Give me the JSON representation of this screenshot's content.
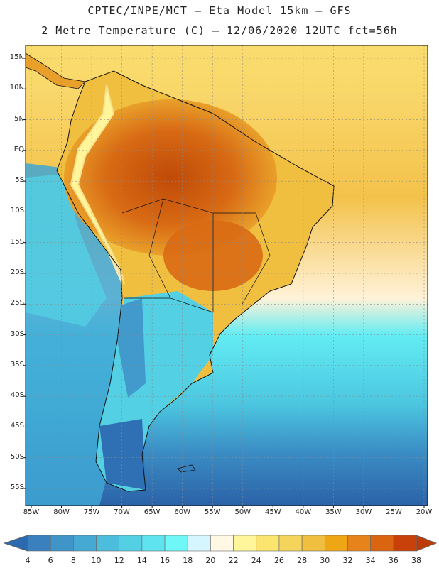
{
  "header": {
    "line1": "CPTEC/INPE/MCT –  Eta Model 15km – GFS",
    "line2": "2 Metre Temperature (C) – 12/06/2020 12UTC fct=56h"
  },
  "axes": {
    "lat_labels": [
      "15N",
      "10N",
      "5N",
      "EQ",
      "5S",
      "10S",
      "15S",
      "20S",
      "25S",
      "30S",
      "35S",
      "40S",
      "45S",
      "50S",
      "55S"
    ],
    "lon_labels": [
      "85W",
      "80W",
      "75W",
      "70W",
      "65W",
      "60W",
      "55W",
      "50W",
      "45W",
      "40W",
      "35W",
      "30W",
      "25W",
      "20W"
    ]
  },
  "colorbar": {
    "labels": [
      "4",
      "6",
      "8",
      "10",
      "12",
      "14",
      "16",
      "18",
      "20",
      "22",
      "24",
      "26",
      "28",
      "30",
      "32",
      "34",
      "36",
      "38"
    ],
    "colors": [
      "#2b6aae",
      "#3a7fbe",
      "#3f94c8",
      "#45a9d3",
      "#4cbddc",
      "#53d0e4",
      "#5fe3ee",
      "#6ff6f6",
      "#d6f6ff",
      "#fff8e4",
      "#fff59a",
      "#fbe56e",
      "#f4d45a",
      "#f0bf3f",
      "#eea615",
      "#e6841b",
      "#db6410",
      "#c8410a"
    ],
    "low_color": "#2b6aae",
    "high_color": "#bf3b06"
  }
}
